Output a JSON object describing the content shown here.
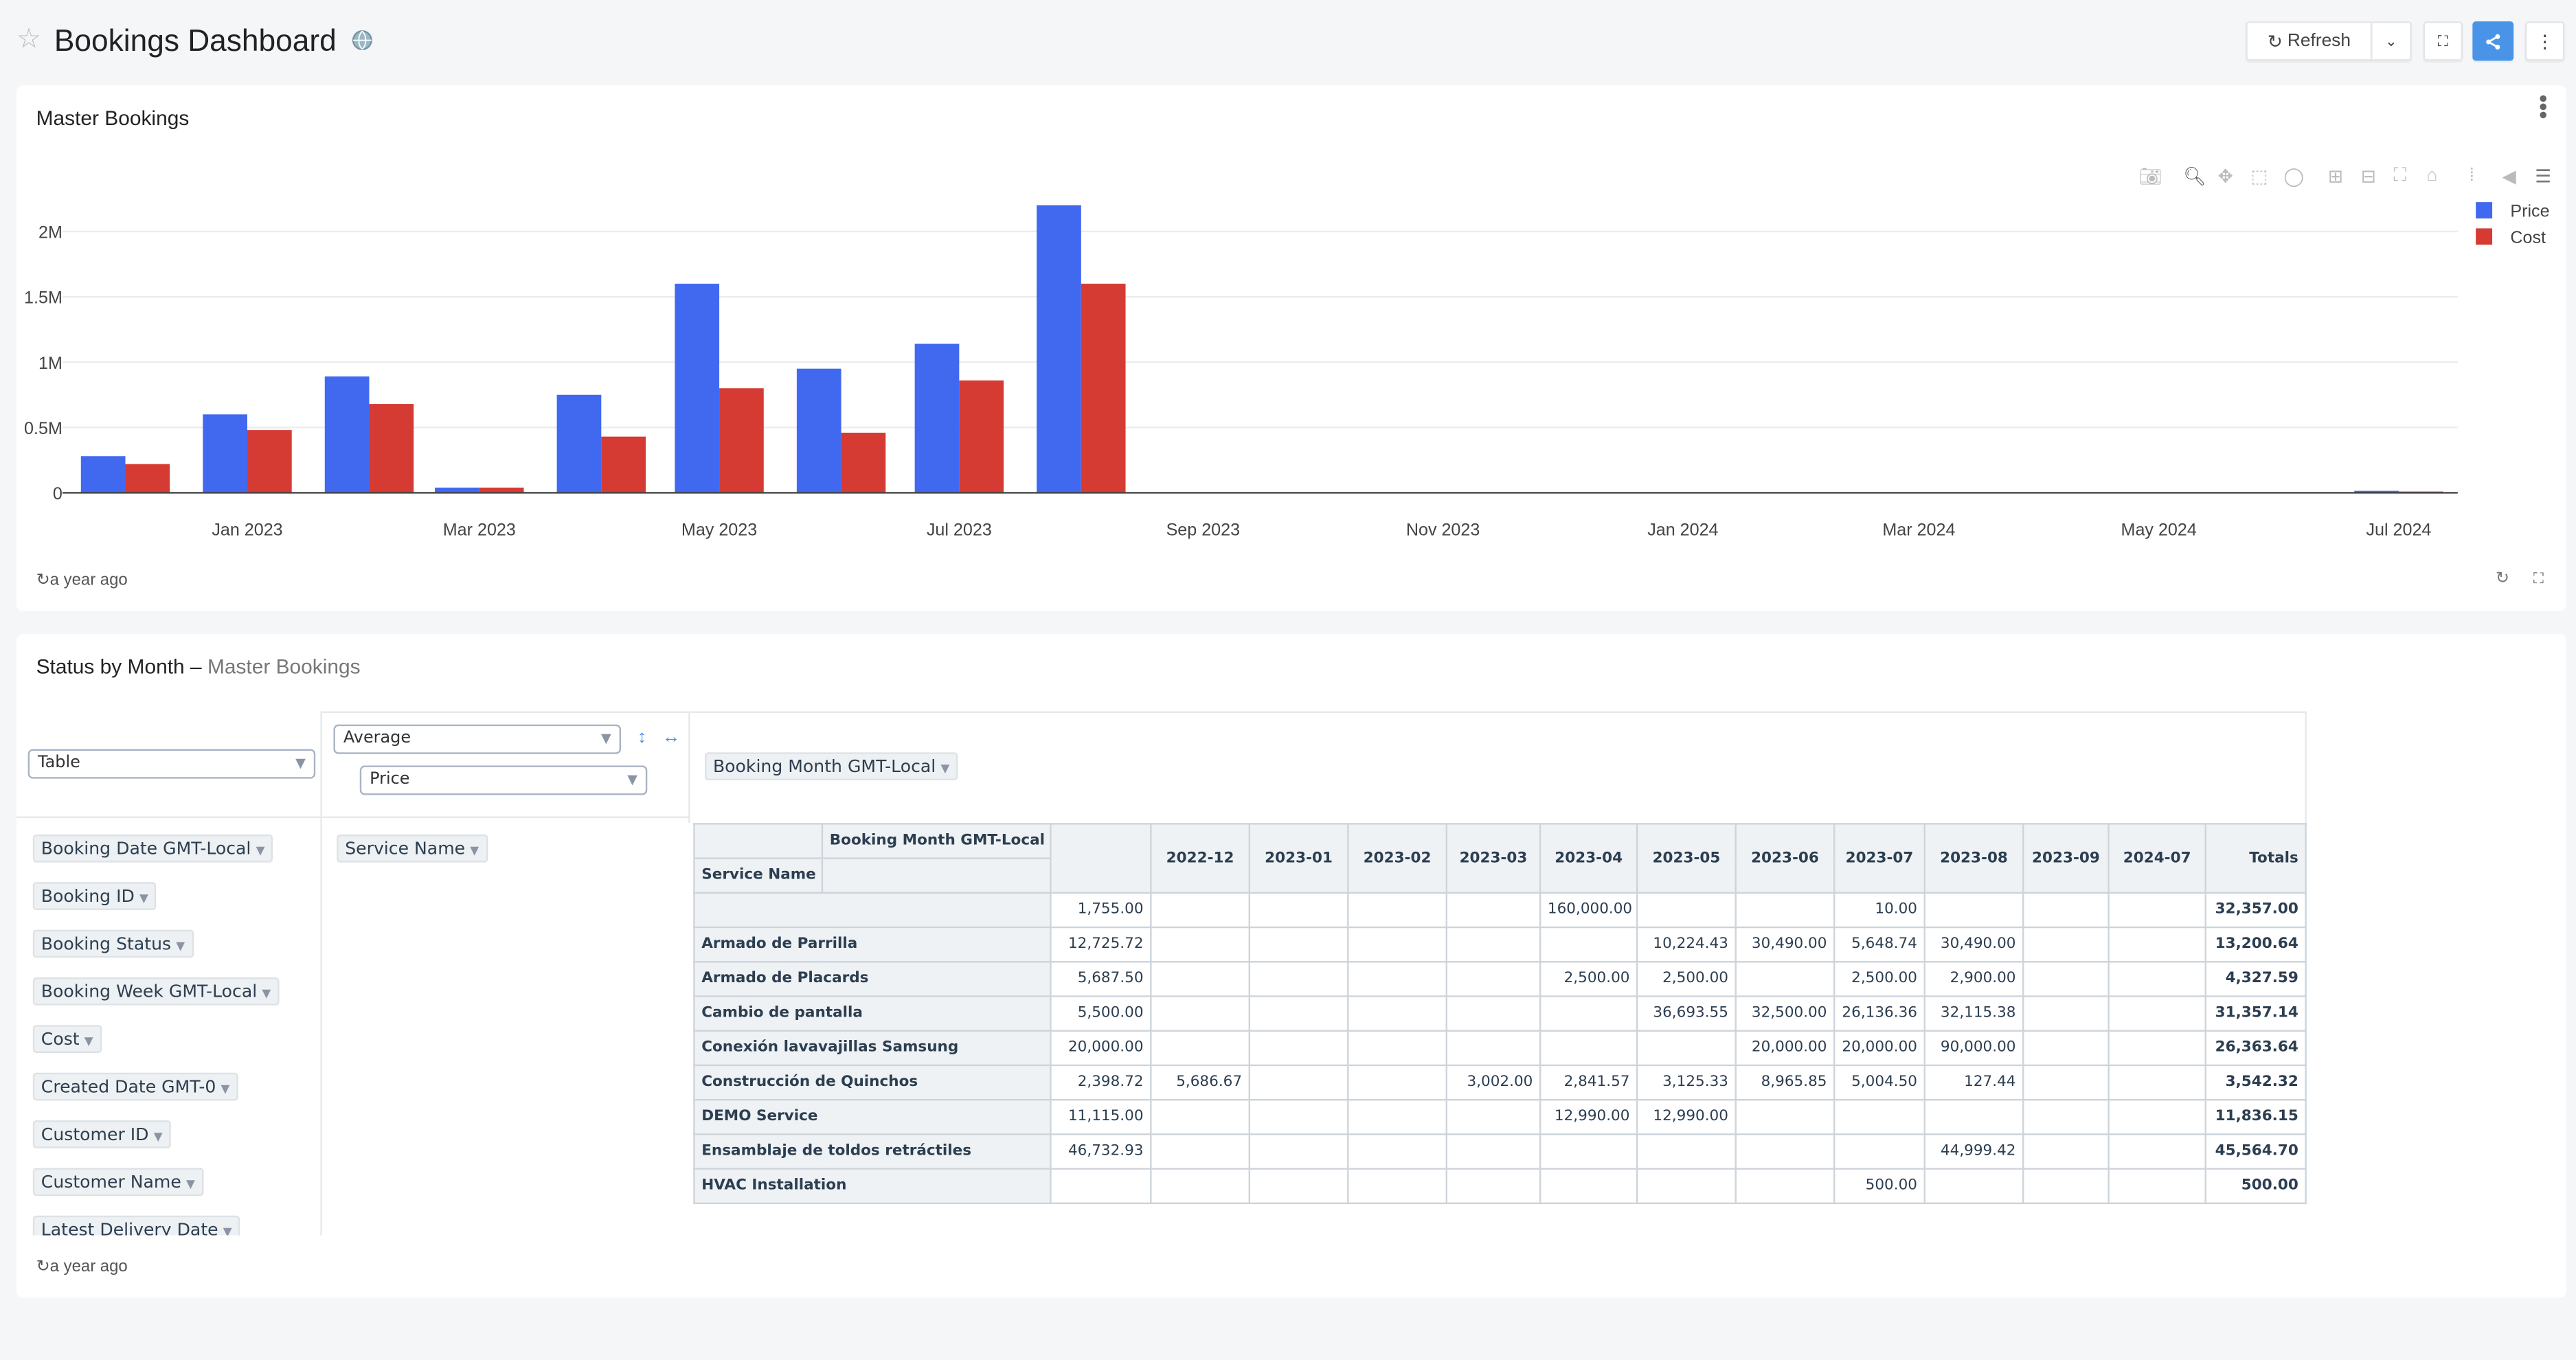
{
  "header": {
    "title": "Bookings Dashboard",
    "refresh_label": "Refresh",
    "icons": [
      "star-icon",
      "globe-icon",
      "refresh-icon",
      "chevron-down-icon",
      "fullscreen-icon",
      "share-icon",
      "more-vertical-icon"
    ],
    "share_color": "#4a94e8"
  },
  "chart_card": {
    "title": "Master Bookings",
    "updated": "a year ago",
    "toolbar_icons": [
      "camera-icon",
      "zoom-icon",
      "pan-icon",
      "box-select-icon",
      "lasso-icon",
      "zoom-in-icon",
      "zoom-out-icon",
      "autoscale-icon",
      "home-icon",
      "spike-lines-icon",
      "hover-closest-icon",
      "hover-compare-icon"
    ]
  },
  "chart_data": {
    "type": "bar",
    "x_type": "date",
    "xlim": [
      "2022-11-15",
      "2024-07-16"
    ],
    "ylim": [
      0,
      2300000
    ],
    "grid": true,
    "legend_placement": "top-right",
    "x_ticks": [
      {
        "date": "2023-01-01",
        "label": "Jan 2023"
      },
      {
        "date": "2023-03-01",
        "label": "Mar 2023"
      },
      {
        "date": "2023-05-01",
        "label": "May 2023"
      },
      {
        "date": "2023-07-01",
        "label": "Jul 2023"
      },
      {
        "date": "2023-09-01",
        "label": "Sep 2023"
      },
      {
        "date": "2023-11-01",
        "label": "Nov 2023"
      },
      {
        "date": "2024-01-01",
        "label": "Jan 2024"
      },
      {
        "date": "2024-03-01",
        "label": "Mar 2024"
      },
      {
        "date": "2024-05-01",
        "label": "May 2024"
      },
      {
        "date": "2024-07-01",
        "label": "Jul 2024"
      }
    ],
    "y_ticks": [
      {
        "value": 0,
        "label": "0"
      },
      {
        "value": 500000,
        "label": "0.5M"
      },
      {
        "value": 1000000,
        "label": "1M"
      },
      {
        "value": 1500000,
        "label": "1.5M"
      },
      {
        "value": 2000000,
        "label": "2M"
      }
    ],
    "x": [
      "2022-12-01",
      "2023-01-01",
      "2023-02-01",
      "2023-03-01",
      "2023-04-01",
      "2023-05-01",
      "2023-06-01",
      "2023-07-01",
      "2023-08-01",
      "2024-07-01"
    ],
    "series": [
      {
        "name": "Price",
        "color": "#4169f0",
        "values": [
          280000,
          600000,
          890000,
          40000,
          750000,
          1600000,
          950000,
          1140000,
          2200000,
          15000
        ]
      },
      {
        "name": "Cost",
        "color": "#d63b33",
        "values": [
          220000,
          480000,
          680000,
          40000,
          430000,
          800000,
          460000,
          860000,
          1600000,
          10000
        ]
      }
    ]
  },
  "pivot_card": {
    "title": "Status by Month",
    "separator": "–",
    "subtitle": "Master Bookings",
    "updated": "a year ago",
    "renderer": "Table",
    "aggregator": "Average",
    "value_field": "Price",
    "col_attr": "Booking Month GMT-Local",
    "row_attr": "Service Name",
    "unused_attrs": [
      "Booking Date GMT-Local",
      "Booking ID",
      "Booking Status",
      "Booking Week GMT-Local",
      "Cost",
      "Created Date GMT-0",
      "Customer ID",
      "Customer Name",
      "Latest Delivery Date"
    ],
    "table": {
      "col_header_label": "Booking Month GMT-Local",
      "row_header_label": "Service Name",
      "columns": [
        "",
        "2022-12",
        "2023-01",
        "2023-02",
        "2023-03",
        "2023-04",
        "2023-05",
        "2023-06",
        "2023-07",
        "2023-08",
        "2023-09",
        "2024-07",
        "Totals"
      ],
      "rows": [
        {
          "label": "",
          "cells": [
            "1,755.00",
            "",
            "",
            "",
            "",
            "160,000.00",
            "",
            "",
            "10.00",
            "",
            "",
            "",
            "32,357.00"
          ]
        },
        {
          "label": "Armado de Parrilla",
          "cells": [
            "12,725.72",
            "",
            "",
            "",
            "",
            "",
            "10,224.43",
            "30,490.00",
            "5,648.74",
            "30,490.00",
            "",
            "",
            "13,200.64"
          ]
        },
        {
          "label": "Armado de Placards",
          "cells": [
            "5,687.50",
            "",
            "",
            "",
            "",
            "2,500.00",
            "2,500.00",
            "",
            "2,500.00",
            "2,900.00",
            "",
            "",
            "4,327.59"
          ]
        },
        {
          "label": "Cambio de pantalla",
          "cells": [
            "5,500.00",
            "",
            "",
            "",
            "",
            "",
            "36,693.55",
            "32,500.00",
            "26,136.36",
            "32,115.38",
            "",
            "",
            "31,357.14"
          ]
        },
        {
          "label": "Conexión lavavajillas Samsung",
          "cells": [
            "20,000.00",
            "",
            "",
            "",
            "",
            "",
            "",
            "20,000.00",
            "20,000.00",
            "90,000.00",
            "",
            "",
            "26,363.64"
          ]
        },
        {
          "label": "Construcción de Quinchos",
          "cells": [
            "2,398.72",
            "5,686.67",
            "",
            "",
            "3,002.00",
            "2,841.57",
            "3,125.33",
            "8,965.85",
            "5,004.50",
            "127.44",
            "",
            "",
            "3,542.32"
          ]
        },
        {
          "label": "DEMO Service",
          "cells": [
            "11,115.00",
            "",
            "",
            "",
            "",
            "12,990.00",
            "12,990.00",
            "",
            "",
            "",
            "",
            "",
            "11,836.15"
          ]
        },
        {
          "label": "Ensamblaje de toldos retráctiles",
          "cells": [
            "46,732.93",
            "",
            "",
            "",
            "",
            "",
            "",
            "",
            "",
            "44,999.42",
            "",
            "",
            "45,564.70"
          ]
        },
        {
          "label": "HVAC Installation",
          "cells": [
            "",
            "",
            "",
            "",
            "",
            "",
            "",
            "",
            "500.00",
            "",
            "",
            "",
            "500.00"
          ]
        }
      ]
    }
  }
}
